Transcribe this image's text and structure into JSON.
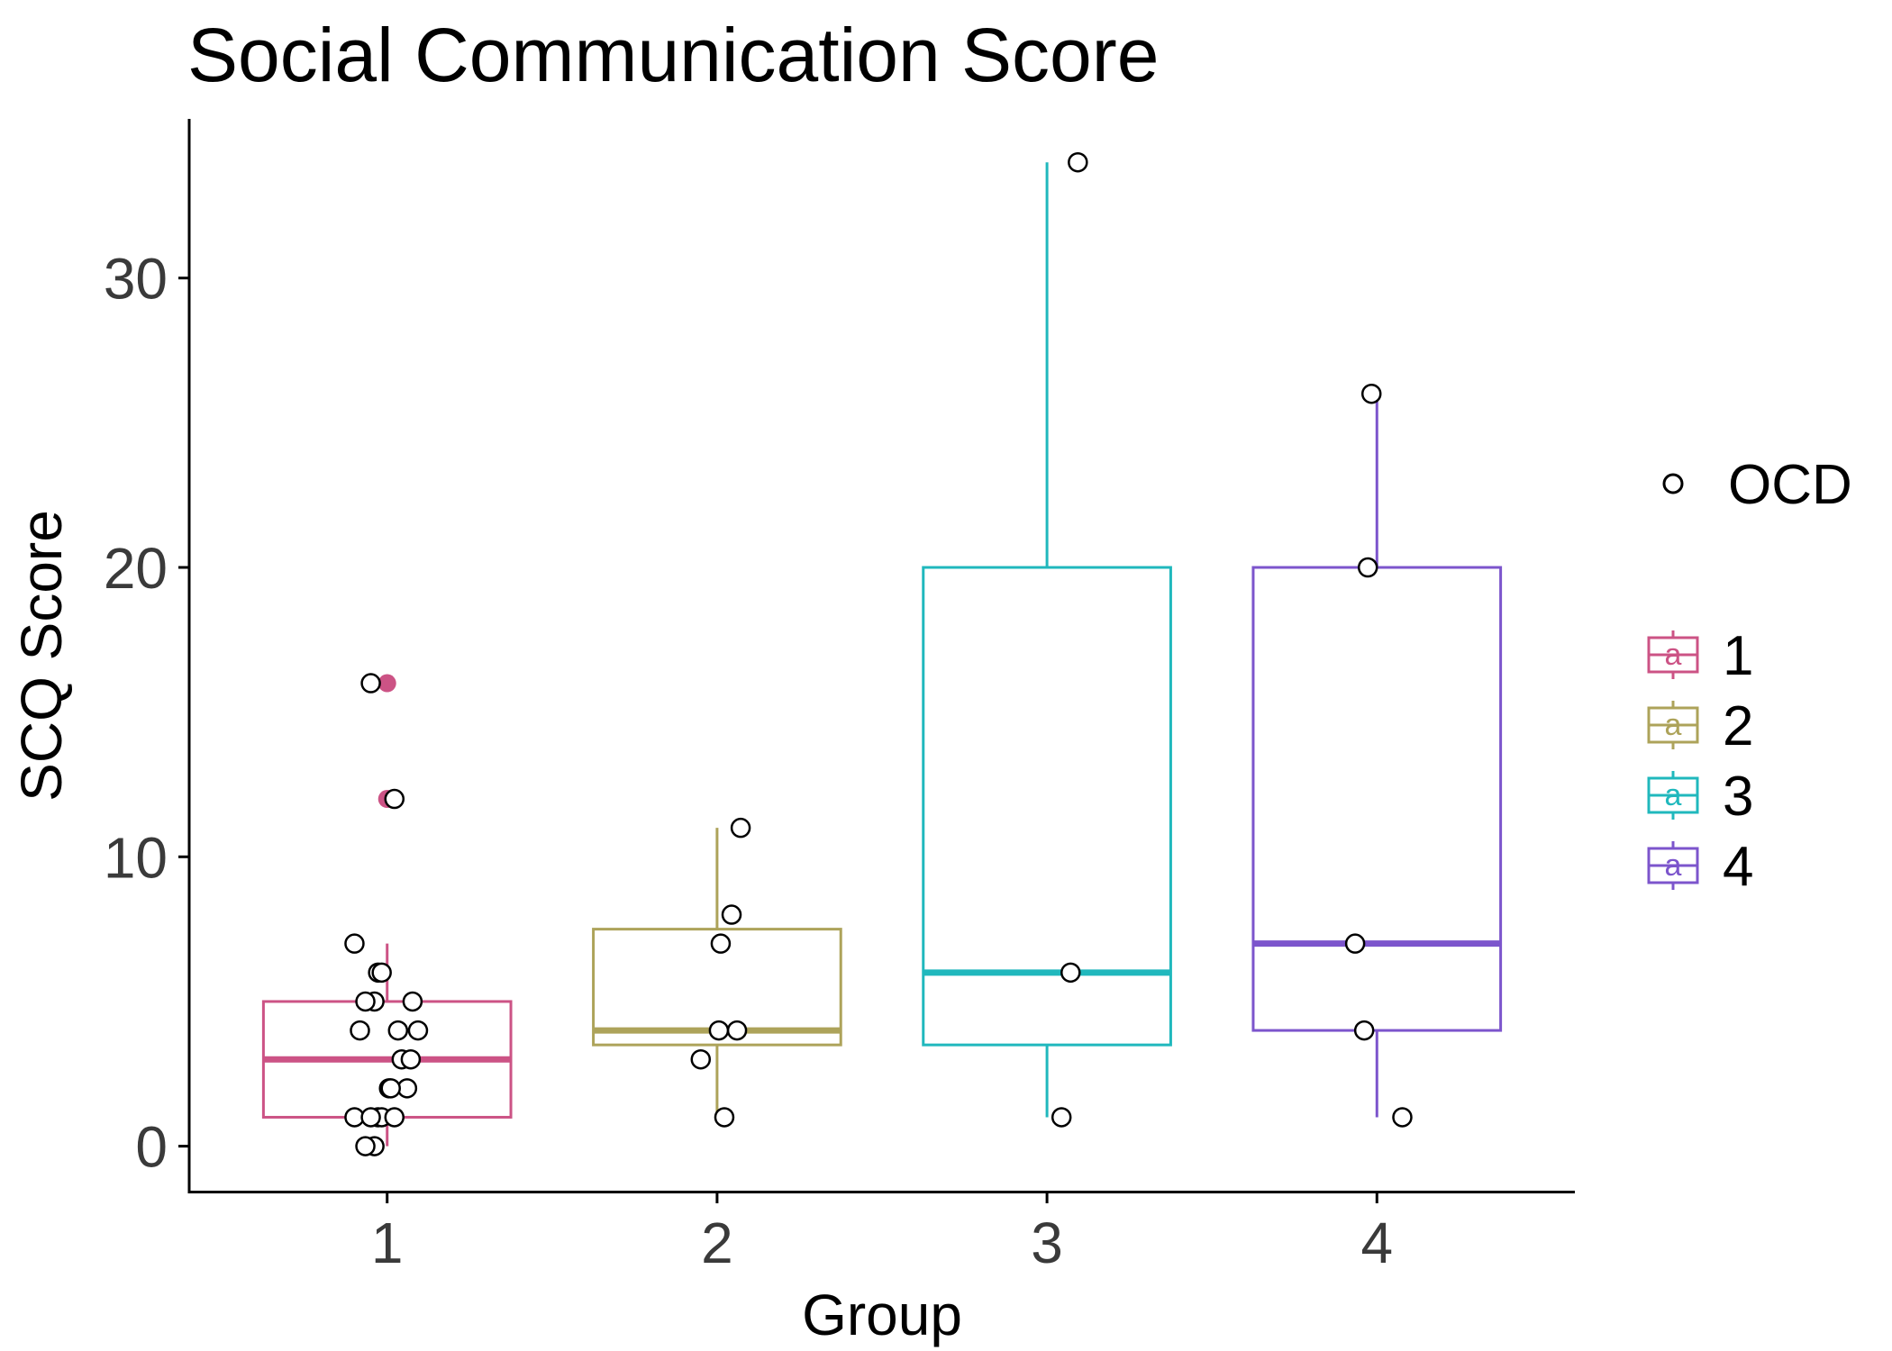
{
  "chart_data": {
    "type": "box",
    "title": "Social Communication Score",
    "xlabel": "Group",
    "ylabel": "SCQ Score",
    "categories": [
      "1",
      "2",
      "3",
      "4"
    ],
    "ylim": [
      -1.6,
      35.5
    ],
    "yticks": [
      0,
      10,
      20,
      30
    ],
    "grid": false,
    "legend_position": "right",
    "points_legend": {
      "label": "OCD"
    },
    "fill_legend": {
      "key_letter": "a",
      "entries": [
        {
          "label": "1",
          "color": "#CC5385"
        },
        {
          "label": "2",
          "color": "#ADA35A"
        },
        {
          "label": "3",
          "color": "#20B8BD"
        },
        {
          "label": "4",
          "color": "#7C55CC"
        }
      ]
    },
    "series": [
      {
        "group": "1",
        "color": "#CC5385",
        "q1": 1,
        "median": 3,
        "q3": 5,
        "whisker_low": 0,
        "whisker_high": 7,
        "outliers": [
          12,
          16
        ],
        "points": [
          0,
          0,
          1,
          1,
          1,
          1,
          1,
          2,
          2,
          2,
          3,
          3,
          4,
          4,
          4,
          5,
          5,
          5,
          6,
          6,
          7,
          12,
          16
        ]
      },
      {
        "group": "2",
        "color": "#ADA35A",
        "q1": 3.5,
        "median": 4,
        "q3": 7.5,
        "whisker_low": 1,
        "whisker_high": 11,
        "outliers": [],
        "points": [
          1,
          3,
          4,
          4,
          7,
          8,
          11
        ]
      },
      {
        "group": "3",
        "color": "#20B8BD",
        "q1": 3.5,
        "median": 6,
        "q3": 20,
        "whisker_low": 1,
        "whisker_high": 34,
        "outliers": [],
        "points": [
          1,
          6,
          34
        ]
      },
      {
        "group": "4",
        "color": "#7C55CC",
        "q1": 4,
        "median": 7,
        "q3": 20,
        "whisker_low": 1,
        "whisker_high": 26,
        "outliers": [],
        "points": [
          1,
          4,
          7,
          20,
          26
        ]
      }
    ]
  }
}
